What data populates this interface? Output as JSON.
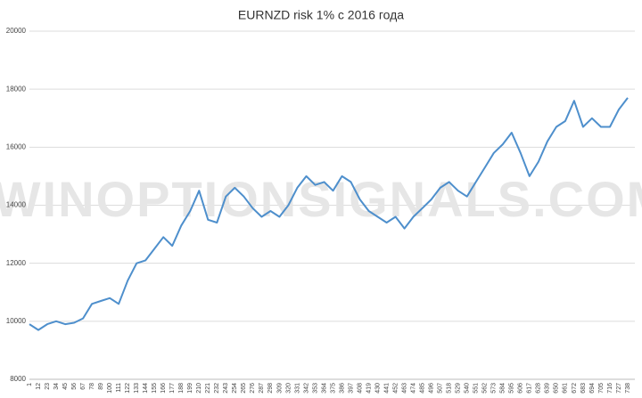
{
  "chart_data": {
    "type": "line",
    "title": "EURNZD risk 1% с 2016 года",
    "watermark": "WINOPTIONSIGNALS.COM",
    "categories": [
      "1",
      "12",
      "23",
      "34",
      "45",
      "56",
      "67",
      "78",
      "89",
      "100",
      "111",
      "122",
      "133",
      "144",
      "155",
      "166",
      "177",
      "188",
      "199",
      "210",
      "221",
      "232",
      "243",
      "254",
      "265",
      "276",
      "287",
      "298",
      "309",
      "320",
      "331",
      "342",
      "353",
      "364",
      "375",
      "386",
      "397",
      "408",
      "419",
      "430",
      "441",
      "452",
      "463",
      "474",
      "485",
      "496",
      "507",
      "518",
      "529",
      "540",
      "551",
      "562",
      "573",
      "584",
      "595",
      "606",
      "617",
      "628",
      "639",
      "650",
      "661",
      "672",
      "683",
      "694",
      "705",
      "716",
      "727",
      "738"
    ],
    "series": [
      {
        "name": "EURNZD",
        "color": "#4e8fcc",
        "values": [
          9900,
          9700,
          9900,
          10000,
          9900,
          9950,
          10100,
          10600,
          10700,
          10800,
          10600,
          11400,
          12000,
          12100,
          12500,
          12900,
          12600,
          13300,
          13800,
          14500,
          13500,
          13400,
          14300,
          14600,
          14300,
          13900,
          13600,
          13800,
          13600,
          14000,
          14600,
          15000,
          14700,
          14800,
          14500,
          15000,
          14800,
          14200,
          13800,
          13600,
          13400,
          13600,
          13200,
          13600,
          13900,
          14200,
          14600,
          14800,
          14500,
          14300,
          14800,
          15300,
          15800,
          16100,
          16500,
          15800,
          15000,
          15500,
          16200,
          16700,
          16900,
          17600,
          16700,
          17000,
          16700,
          16700,
          17300,
          17700
        ]
      }
    ],
    "ylim": [
      8000,
      20000
    ],
    "yticks": [
      8000,
      10000,
      12000,
      14000,
      16000,
      18000,
      20000
    ],
    "grid": true
  }
}
